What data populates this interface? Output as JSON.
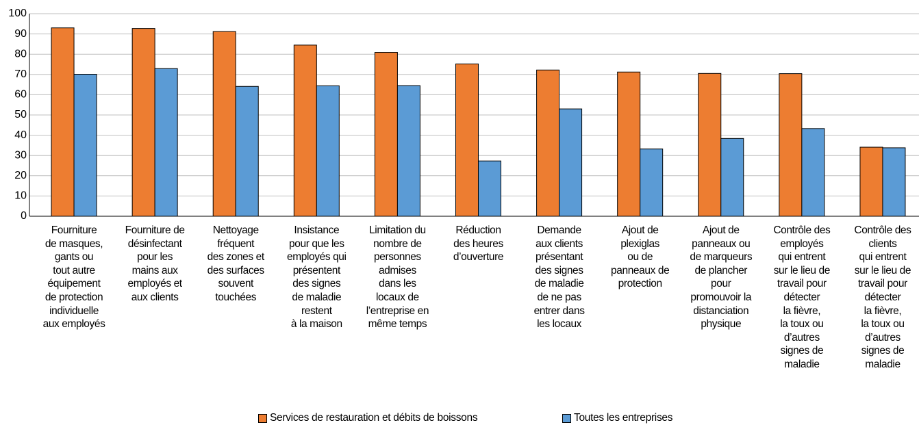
{
  "chart_data": {
    "type": "bar",
    "categories": [
      "Fourniture\nde masques,\ngants ou\ntout autre\néquipement\nde protection\nindividuelle\naux employés",
      "Fourniture de\ndésinfectant\npour les\nmains aux\nemployés et\naux clients",
      "Nettoyage\nfréquent\ndes zones et\ndes surfaces\nsouvent\ntouchées",
      "Insistance\npour que les\nemployés qui\nprésentent\ndes signes\nde maladie\nrestent\nà la maison",
      "Limitation du\nnombre de\npersonnes\nadmises\ndans les\nlocaux de\nl’entreprise en\nmême temps",
      "Réduction\ndes heures\nd’ouverture",
      "Demande\naux clients\nprésentant\ndes signes\nde maladie\nde ne pas\nentrer dans\nles locaux",
      "Ajout de\nplexiglas\nou de\npanneaux de\nprotection",
      "Ajout de\npanneaux ou\nde marqueurs\nde plancher\npour\npromouvoir la\ndistanciation\nphysique",
      "Contrôle des\nemployés\nqui entrent\nsur le lieu de\ntravail pour\ndétecter\nla fièvre,\nla toux ou\nd’autres\nsignes de\nmaladie",
      "Contrôle des\nclients\nqui entrent\nsur le lieu de\ntravail pour\ndétecter\nla fièvre,\nla toux ou\nd’autres\nsignes de\nmaladie"
    ],
    "series": [
      {
        "name": "Services de restauration et débits de boissons",
        "color": "#ed7d31",
        "values": [
          93,
          92.7,
          91.2,
          84.5,
          80.9,
          75.2,
          72.2,
          71.2,
          70.5,
          70.4,
          34.1
        ]
      },
      {
        "name": "Toutes les entreprises",
        "color": "#5b9bd5",
        "values": [
          70.1,
          72.9,
          64.1,
          64.4,
          64.5,
          27.3,
          53,
          33.2,
          38.4,
          43.3,
          33.8
        ]
      }
    ],
    "ylim": [
      0,
      100
    ],
    "yticks": [
      0,
      10,
      20,
      30,
      40,
      50,
      60,
      70,
      80,
      90,
      100
    ],
    "grid": true,
    "legend": "bottom"
  }
}
